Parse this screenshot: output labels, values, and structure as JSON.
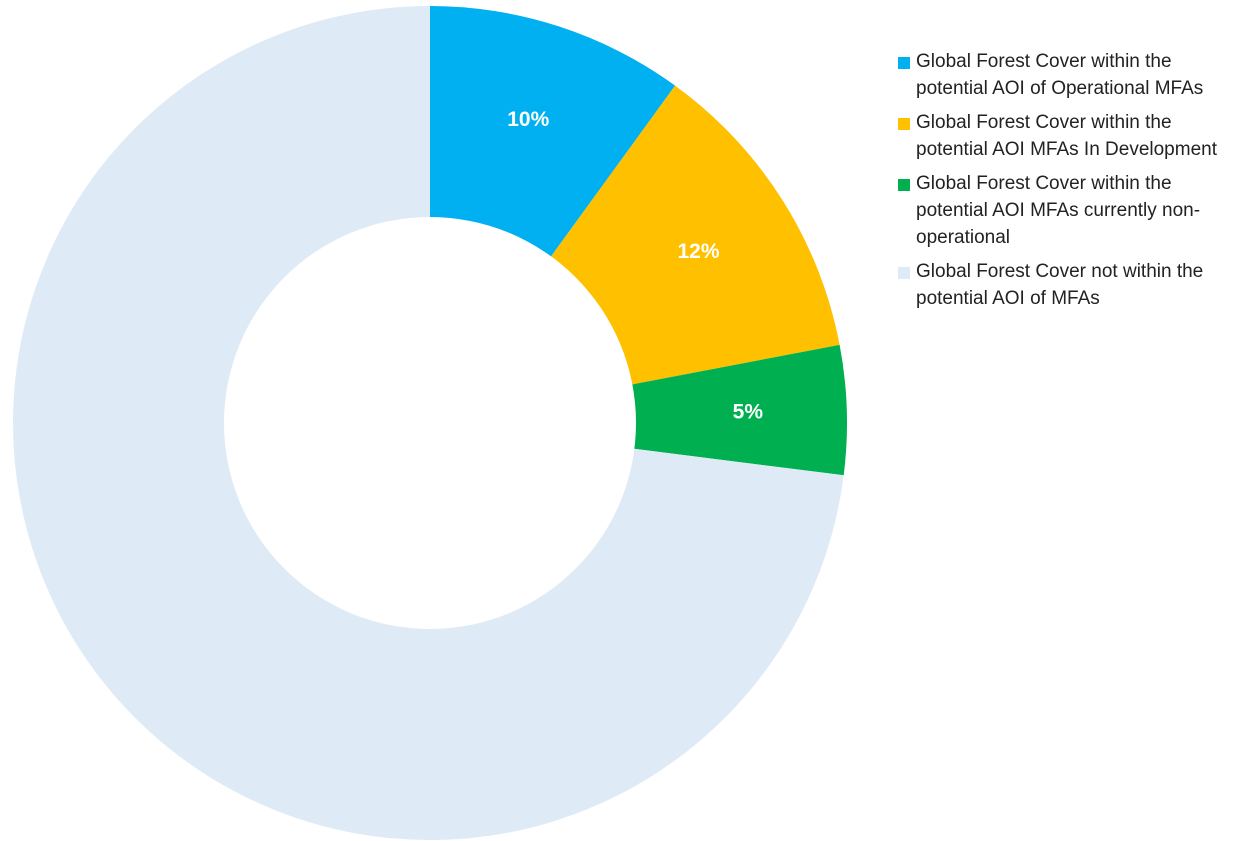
{
  "chart_data": {
    "type": "pie",
    "variant": "donut",
    "title": "",
    "start_angle_deg": 0,
    "direction": "clockwise",
    "labels_shown": [
      "10%",
      "12%",
      "5%",
      ""
    ],
    "slices": [
      {
        "name": "Global Forest Cover within the potential AOI of Operational MFAs",
        "value": 10,
        "label": "10%",
        "color": "#00B0F0"
      },
      {
        "name": "Global Forest Cover within the potential AOI MFAs In Development",
        "value": 12,
        "label": "12%",
        "color": "#FFC000"
      },
      {
        "name": "Global Forest Cover within the potential AOI MFAs currently non-operational",
        "value": 5,
        "label": "5%",
        "color": "#00B050"
      },
      {
        "name": "Global Forest Cover not within the potential AOI of MFAs",
        "value": 73,
        "label": "",
        "color": "#DEEBF7"
      }
    ],
    "legend_position": "right"
  }
}
